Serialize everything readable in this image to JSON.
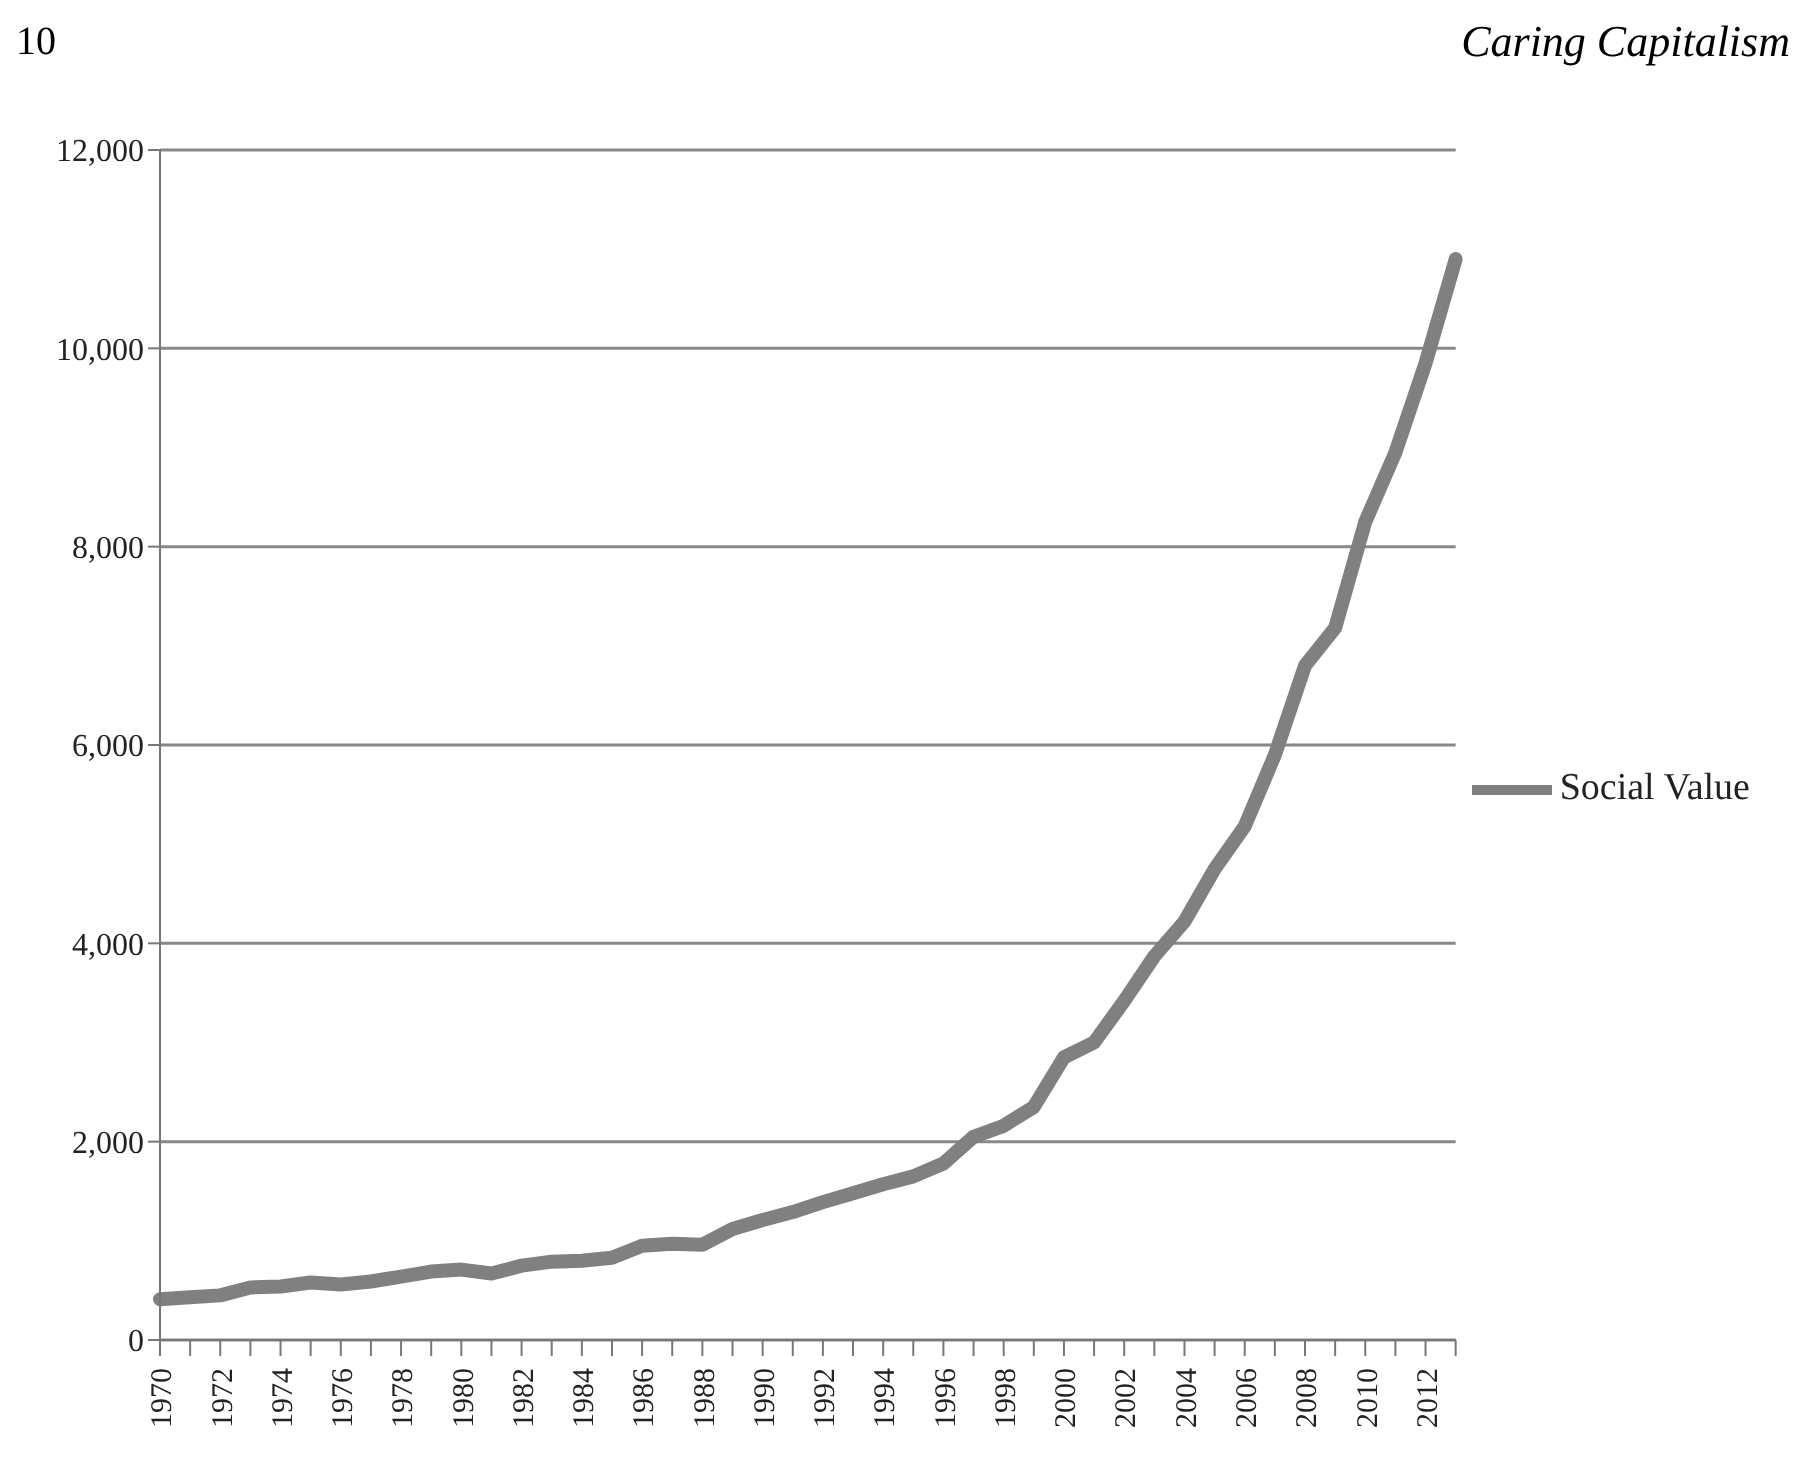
{
  "chart_data": {
    "type": "line",
    "annotations": [
      "10",
      "Caring Capitalism"
    ],
    "categories": [
      "1970",
      null,
      "1972",
      null,
      "1974",
      null,
      "1976",
      null,
      "1978",
      null,
      "1980",
      null,
      "1982",
      null,
      "1984",
      null,
      "1986",
      null,
      "1988",
      null,
      "1990",
      null,
      "1992",
      null,
      "1994",
      null,
      "1996",
      null,
      "1998",
      null,
      "2000",
      null,
      "2002",
      null,
      "2004",
      null,
      "2006",
      null,
      "2008",
      null,
      "2010",
      null,
      "2012",
      null
    ],
    "series": [
      {
        "name": "Social Value",
        "color": "#808080",
        "values": [
          410,
          430,
          450,
          530,
          540,
          580,
          560,
          590,
          640,
          690,
          710,
          670,
          750,
          790,
          800,
          830,
          950,
          970,
          960,
          1120,
          1210,
          1290,
          1390,
          1480,
          1570,
          1650,
          1780,
          2050,
          2160,
          2350,
          2850,
          3000,
          3420,
          3870,
          4220,
          4750,
          5180,
          5900,
          6800,
          7180,
          8250,
          8950,
          9850,
          10900
        ]
      }
    ],
    "ylim": [
      0,
      12000
    ],
    "yticks": [
      0,
      {
        "value": 2000,
        "label": "2,000"
      },
      {
        "value": 4000,
        "label": "4,000"
      },
      {
        "value": 6000,
        "label": "6,000"
      },
      {
        "value": 8000,
        "label": "8,000"
      },
      {
        "value": 10000,
        "label": "10,000"
      },
      {
        "value": 12000,
        "label": "12,000"
      }
    ],
    "grid": "y",
    "legend": "right",
    "marker": "none",
    "line_style": "solid"
  }
}
